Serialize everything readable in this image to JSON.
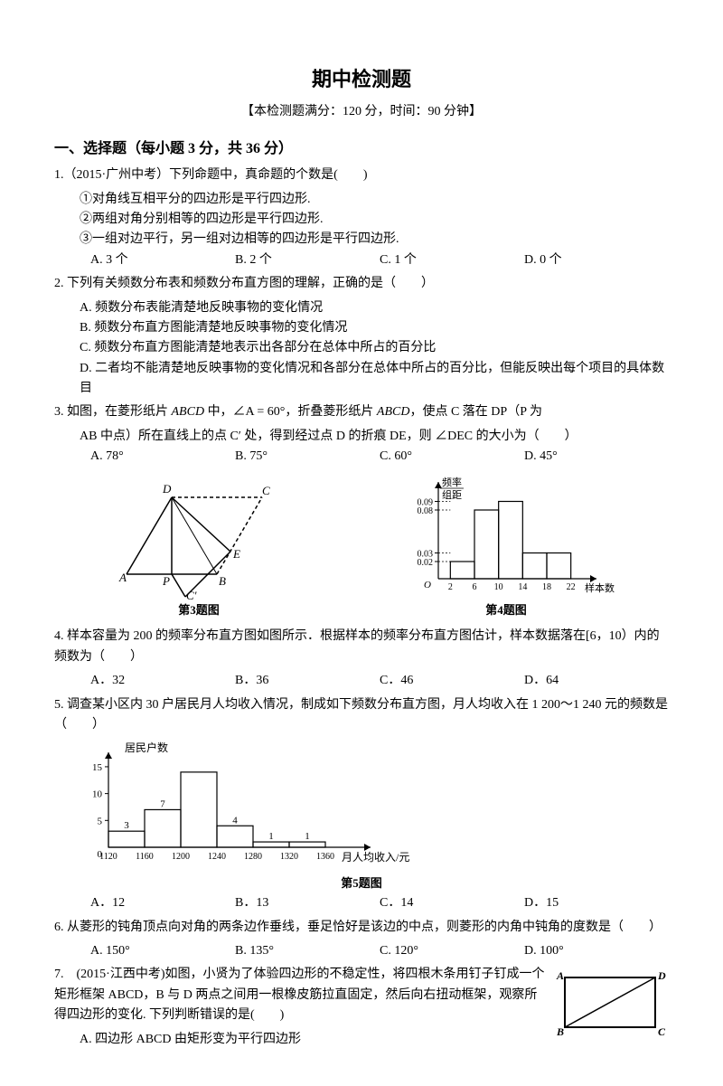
{
  "title": "期中检测题",
  "subtitle": "【本检测题满分：120 分，时间：90 分钟】",
  "section1": "一、选择题（每小题 3 分，共 36 分）",
  "q1": {
    "stem": "1.（2015·广州中考）下列命题中，真命题的个数是(　　)",
    "s1": "①对角线互相平分的四边形是平行四边形.",
    "s2": "②两组对角分别相等的四边形是平行四边形.",
    "s3": "③一组对边平行，另一组对边相等的四边形是平行四边形.",
    "a": "A. 3 个",
    "b": "B. 2 个",
    "c": "C. 1 个",
    "d": "D. 0 个"
  },
  "q2": {
    "stem": "2. 下列有关频数分布表和频数分布直方图的理解，正确的是（　　）",
    "a": "A. 频数分布表能清楚地反映事物的变化情况",
    "b": "B. 频数分布直方图能清楚地反映事物的变化情况",
    "c": "C. 频数分布直方图能清楚地表示出各部分在总体中所占的百分比",
    "d": "D. 二者均不能清楚地反映事物的变化情况和各部分在总体中所占的百分比，但能反映出每个项目的具体数目"
  },
  "q3": {
    "stem_a": "3. 如图，在菱形纸片 ",
    "abcd": "ABCD",
    "stem_b": " 中，∠A = 60°，折叠菱形纸片 ",
    "stem_c": "，使点 C 落在 DP（P 为",
    "stem_d": "AB 中点）所在直线上的点 C′ 处，得到经过点 D 的折痕 DE，则 ∠DEC 的大小为（　　）",
    "a": "A. 78°",
    "b": "B. 75°",
    "c": "C. 60°",
    "d": "D. 45°"
  },
  "fig3cap": "第3题图",
  "fig4cap": "第4题图",
  "fig4": {
    "ylabel1": "频率",
    "ylabel2": "组距",
    "ylabels": [
      "0.09",
      "0.08",
      "0.03",
      "0.02"
    ],
    "xlabels": [
      "2",
      "6",
      "10",
      "14",
      "18",
      "22"
    ],
    "xlabel": "样本数据",
    "o": "O",
    "bars": [
      {
        "x": 2,
        "w": 4,
        "h": 0.02
      },
      {
        "x": 6,
        "w": 4,
        "h": 0.08
      },
      {
        "x": 10,
        "w": 4,
        "h": 0.09
      },
      {
        "x": 14,
        "w": 4,
        "h": 0.03
      },
      {
        "x": 18,
        "w": 4,
        "h": 0.03
      }
    ],
    "ymax": 0.1
  },
  "q4": {
    "stem": "4. 样本容量为 200 的频率分布直方图如图所示．根据样本的频率分布直方图估计，样本数据落在[6，10）内的频数为（　　）",
    "a": "A．32",
    "b": "B．36",
    "c": "C．46",
    "d": "D．64"
  },
  "q5": {
    "stem": "5. 调查某小区内 30 户居民月人均收入情况，制成如下频数分布直方图，月人均收入在 1 200～1 240 元的频数是（　　）",
    "a": "A．12",
    "b": "B．13",
    "c": "C．14",
    "d": "D．15"
  },
  "fig5": {
    "ylabel": "居民户数",
    "xlabel": "月人均收入/元",
    "yticks": [
      "5",
      "10",
      "15"
    ],
    "barlabels": [
      "3",
      "7",
      "",
      "4",
      "1",
      "1"
    ],
    "xlabels": [
      "1120",
      "1160",
      "1200",
      "1240",
      "1280",
      "1320",
      "1360"
    ],
    "values": [
      3,
      7,
      14,
      4,
      1,
      1
    ],
    "o": "0"
  },
  "fig5cap": "第5题图",
  "q6": {
    "stem": "6. 从菱形的钝角顶点向对角的两条边作垂线，垂足恰好是该边的中点，则菱形的内角中钝角的度数是（　　）",
    "a": "A. 150°",
    "b": "B. 135°",
    "c": "C. 120°",
    "d": "D. 100°"
  },
  "q7": {
    "stem": "7.　(2015·江西中考)如图，小贤为了体验四边形的不稳定性，将四根木条用钉子钉成一个矩形框架 ABCD，B 与 D 两点之间用一根橡皮筋拉直固定，然后向右扭动框架，观察所得四边形的变化. 下列判断错误的是(　　)",
    "a": "A. 四边形 ABCD 由矩形变为平行四边形"
  },
  "fig7": {
    "A": "A",
    "B": "B",
    "C": "C",
    "D": "D"
  }
}
